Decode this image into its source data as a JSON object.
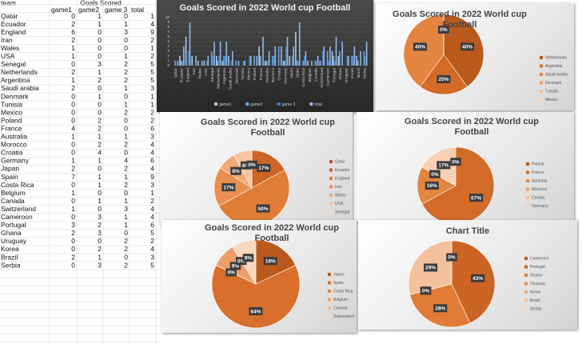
{
  "header": {
    "team": "team",
    "group": "Goals Scored"
  },
  "table": {
    "columns": [
      "game1",
      "game2",
      "game 3",
      "total"
    ],
    "rows": [
      [
        "Qatar",
        0,
        1,
        0,
        1
      ],
      [
        "Ecuador",
        2,
        1,
        1,
        4
      ],
      [
        "England",
        6,
        0,
        3,
        9
      ],
      [
        "Iran",
        2,
        0,
        0,
        2
      ],
      [
        "Wales",
        1,
        0,
        0,
        1
      ],
      [
        "USA",
        1,
        0,
        1,
        2
      ],
      [
        "Senegal",
        0,
        3,
        2,
        5
      ],
      [
        "Netherlands",
        2,
        1,
        2,
        5
      ],
      [
        "Argentina",
        1,
        2,
        2,
        5
      ],
      [
        "Saudi arabia",
        2,
        0,
        1,
        3
      ],
      [
        "Denmark",
        0,
        1,
        0,
        1
      ],
      [
        "Tunisia",
        0,
        0,
        1,
        1
      ],
      [
        "Mexico",
        0,
        0,
        2,
        2
      ],
      [
        "Poland",
        0,
        2,
        0,
        2
      ],
      [
        "France",
        4,
        2,
        0,
        6
      ],
      [
        "Australia",
        1,
        1,
        1,
        3
      ],
      [
        "Morocco",
        0,
        2,
        2,
        4
      ],
      [
        "Croatia",
        0,
        4,
        0,
        4
      ],
      [
        "Germany",
        1,
        1,
        4,
        6
      ],
      [
        "Japan",
        2,
        0,
        2,
        4
      ],
      [
        "Spain",
        7,
        1,
        1,
        9
      ],
      [
        "Costa Rica",
        0,
        1,
        2,
        3
      ],
      [
        "Belgium",
        1,
        0,
        0,
        1
      ],
      [
        "Canada",
        0,
        1,
        1,
        2
      ],
      [
        "Switzerland",
        1,
        0,
        3,
        4
      ],
      [
        "Cameroon",
        0,
        3,
        1,
        4
      ],
      [
        "Portugal",
        3,
        2,
        1,
        6
      ],
      [
        "Ghana",
        2,
        3,
        0,
        5
      ],
      [
        "Uruguay",
        0,
        0,
        2,
        2
      ],
      [
        "Korea",
        0,
        2,
        2,
        4
      ],
      [
        "Brazil",
        2,
        1,
        0,
        3
      ],
      [
        "Serbia",
        0,
        3,
        2,
        5
      ]
    ]
  },
  "chart_data": [
    {
      "type": "bar",
      "title": "Goals Scored in 2022 World cup Football",
      "categories": [
        "Qatar",
        "Ecuador",
        "England",
        "Iran",
        "Wales",
        "USA",
        "Senegal",
        "Netherlands",
        "Argentina",
        "Saudi arabia",
        "Denmark",
        "Tunisia",
        "Mexico",
        "Poland",
        "France",
        "Australia",
        "Morocco",
        "Croatia",
        "Germany",
        "Japan",
        "Spain",
        "Costa Rica",
        "Belgium",
        "Canada",
        "Switzerland",
        "Cameroon",
        "Portugal",
        "Ghana",
        "Uruguay",
        "Korea",
        "Brazil",
        "Serbia"
      ],
      "series": [
        {
          "name": "game1",
          "color": "#a9c9ea",
          "values": [
            0,
            2,
            6,
            2,
            1,
            1,
            0,
            2,
            1,
            2,
            0,
            0,
            0,
            0,
            4,
            1,
            0,
            0,
            1,
            2,
            7,
            0,
            1,
            0,
            1,
            0,
            3,
            2,
            0,
            0,
            2,
            0
          ]
        },
        {
          "name": "game2",
          "color": "#6fa6dc",
          "values": [
            1,
            1,
            0,
            0,
            0,
            0,
            3,
            1,
            2,
            0,
            1,
            0,
            0,
            2,
            2,
            1,
            2,
            4,
            1,
            0,
            1,
            1,
            0,
            1,
            0,
            3,
            2,
            3,
            0,
            2,
            1,
            3
          ]
        },
        {
          "name": "game 3",
          "color": "#3f7fc4",
          "values": [
            0,
            1,
            3,
            0,
            0,
            1,
            2,
            2,
            2,
            1,
            0,
            1,
            2,
            0,
            0,
            1,
            2,
            0,
            4,
            2,
            1,
            2,
            0,
            1,
            3,
            1,
            1,
            0,
            2,
            2,
            0,
            2
          ]
        },
        {
          "name": "total",
          "color": "#8fb8e8",
          "values": [
            1,
            4,
            9,
            2,
            1,
            2,
            5,
            5,
            5,
            3,
            1,
            1,
            2,
            2,
            6,
            3,
            4,
            4,
            6,
            4,
            9,
            3,
            1,
            2,
            4,
            4,
            6,
            5,
            2,
            4,
            3,
            5
          ]
        }
      ],
      "ylim": [
        0,
        10
      ],
      "yticks": [
        0,
        1,
        2,
        3,
        4,
        5,
        6,
        7,
        8,
        9,
        10
      ],
      "legend": "bottom"
    },
    {
      "type": "pie",
      "title": "Goals Scored in 2022 World cup Football",
      "categories": [
        "Netherlands",
        "Argentina",
        "Saudi arabia",
        "Denmark",
        "Tunisia",
        "Mexico"
      ],
      "values": [
        40,
        20,
        40,
        0,
        0,
        0
      ],
      "value_labels": [
        "40%",
        "20%",
        "40%",
        "0%",
        "0%",
        "0%"
      ],
      "colors": [
        "#b95a1c",
        "#d26a28",
        "#e38440",
        "#ee9f68",
        "#f5bd94",
        "#f9d8c0"
      ],
      "legend": "right"
    },
    {
      "type": "pie",
      "title": "Goals Scored in 2022 World cup Football",
      "categories": [
        "Qatar",
        "Ecuador",
        "England",
        "Iran",
        "Wales",
        "USA",
        "Senegal"
      ],
      "values": [
        0,
        17,
        50,
        17,
        8,
        8,
        0
      ],
      "value_labels": [
        "0%",
        "17%",
        "50%",
        "17%",
        "8%",
        "8%",
        "0%"
      ],
      "colors": [
        "#b95a1c",
        "#cc6424",
        "#e07c36",
        "#e98f50",
        "#f0a878",
        "#f6c4a0",
        "#f9d8c0"
      ],
      "legend": "right"
    },
    {
      "type": "pie",
      "title": "Goals Scored in 2022 World cup Football",
      "categories": [
        "Poland",
        "France",
        "Australia",
        "Morocco",
        "Croatia",
        "Germany"
      ],
      "values": [
        0,
        67,
        16,
        0,
        0,
        17
      ],
      "value_labels": [
        "0%",
        "67%",
        "16%",
        "0%",
        "0%",
        "17%"
      ],
      "colors": [
        "#b95a1c",
        "#d26a28",
        "#e38440",
        "#ee9f68",
        "#f5bd94",
        "#f9d0b4"
      ],
      "legend": "right"
    },
    {
      "type": "pie",
      "title": "Goals Scored in 2022 World cup Football",
      "categories": [
        "Japan",
        "Spain",
        "Costa Rica",
        "Belgium",
        "Canada",
        "Switzerland"
      ],
      "values": [
        18,
        64,
        0,
        9,
        0,
        9
      ],
      "value_labels": [
        "18%",
        "64%",
        "0%",
        "9%",
        "0%",
        "9%"
      ],
      "colors": [
        "#b95a1c",
        "#d86f2c",
        "#e38440",
        "#ee9f68",
        "#f5bd94",
        "#f9d8c0"
      ],
      "legend": "right"
    },
    {
      "type": "pie",
      "title": "Chart Title",
      "categories": [
        "Cameroon",
        "Portugal",
        "Ghana",
        "Uruguay",
        "Korea",
        "Brazil",
        "Serbia"
      ],
      "values": [
        0,
        43,
        28,
        0,
        0,
        29,
        0
      ],
      "value_labels": [
        "0%",
        "43%",
        "28%",
        "0%",
        "0%",
        "29%",
        "0%"
      ],
      "colors": [
        "#b95a1c",
        "#cc6424",
        "#e07c36",
        "#e98f50",
        "#f0a878",
        "#f4c19c",
        "#f9d8c0"
      ],
      "legend": "right"
    }
  ]
}
